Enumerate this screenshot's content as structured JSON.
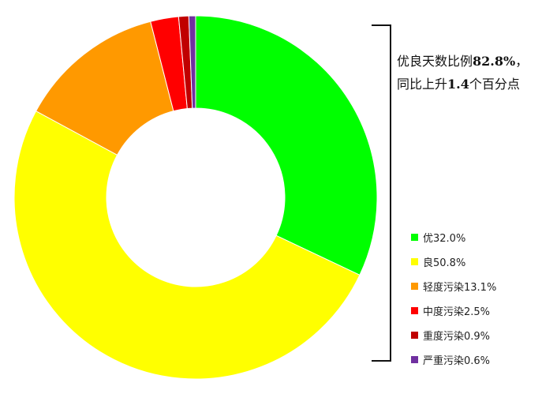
{
  "chart_data": {
    "type": "pie",
    "donut": true,
    "start_angle_deg": 0,
    "direction": "clockwise",
    "series": [
      {
        "name": "优",
        "value": 32.0,
        "label": "优32.0%",
        "color": "#00ff00"
      },
      {
        "name": "良",
        "value": 50.8,
        "label": "良50.8%",
        "color": "#ffff00"
      },
      {
        "name": "轻度污染",
        "value": 13.1,
        "label": "轻度污染13.1%",
        "color": "#ff9900"
      },
      {
        "name": "中度污染",
        "value": 2.5,
        "label": "中度污染2.5%",
        "color": "#ff0000"
      },
      {
        "name": "重度污染",
        "value": 0.9,
        "label": "重度污染0.9%",
        "color": "#c00000"
      },
      {
        "name": "严重污染",
        "value": 0.6,
        "label": "严重污染0.6%",
        "color": "#7030a0"
      }
    ],
    "legend_position": "right-bottom",
    "annotation": {
      "line1_prefix": "优良天数比例",
      "line1_value": "82.8%",
      "line1_suffix": "，",
      "line2_prefix": "同比上升",
      "line2_value": "1.4",
      "line2_suffix": "个百分点"
    }
  }
}
